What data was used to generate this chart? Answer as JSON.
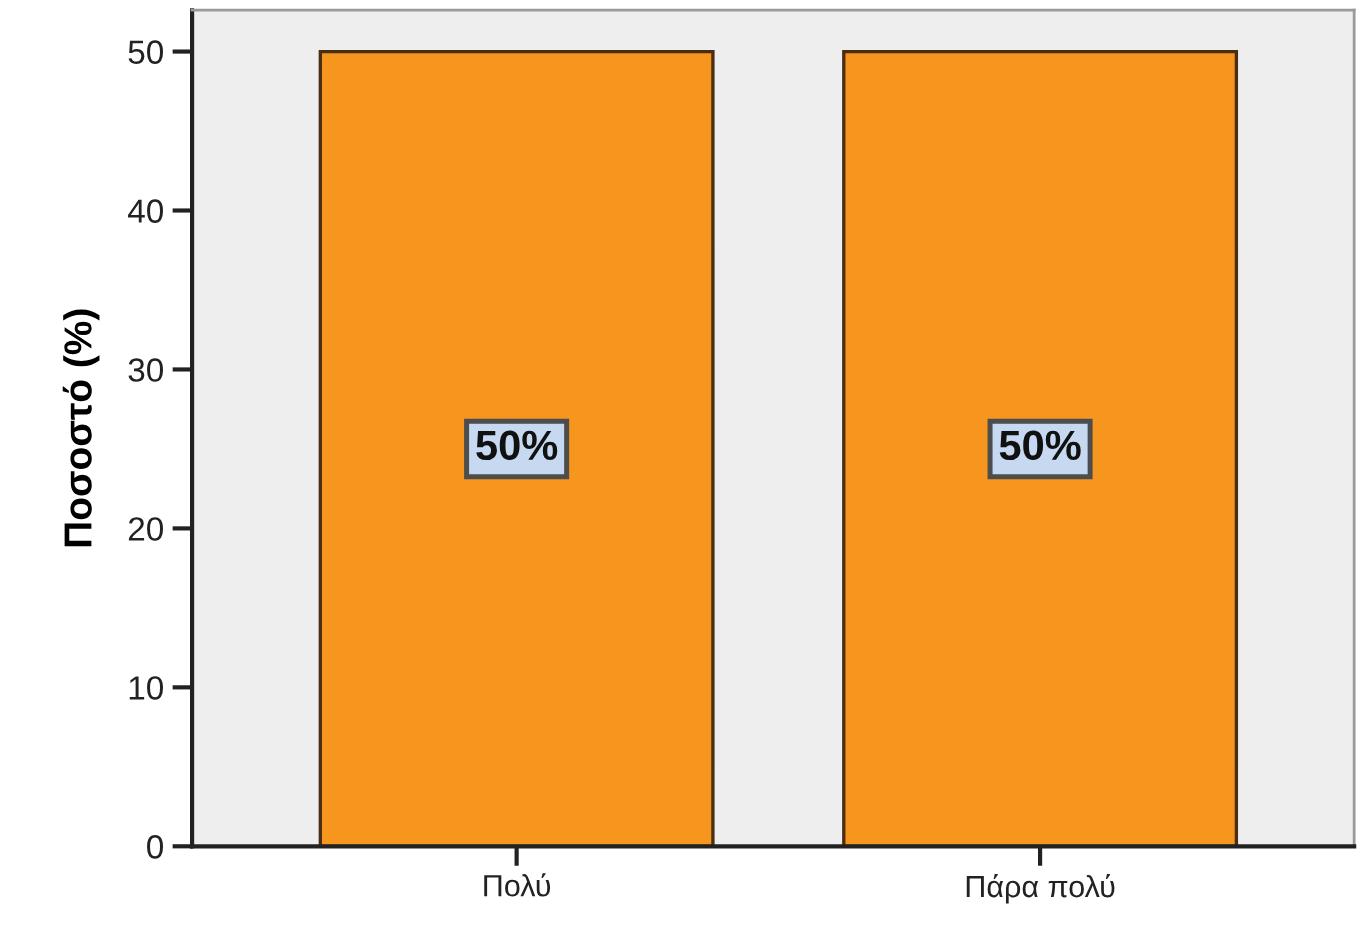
{
  "chart_data": {
    "type": "bar",
    "ylabel": "Ποσοστό (%)",
    "categories": [
      "Πολύ",
      "Πάρα πολύ"
    ],
    "values": [
      50,
      50
    ],
    "color": "#f7961e",
    "ylim": [
      0,
      52.6
    ],
    "yticks": [
      0,
      10,
      20,
      30,
      40,
      50
    ],
    "value_labels": [
      "50%",
      "50%"
    ]
  }
}
